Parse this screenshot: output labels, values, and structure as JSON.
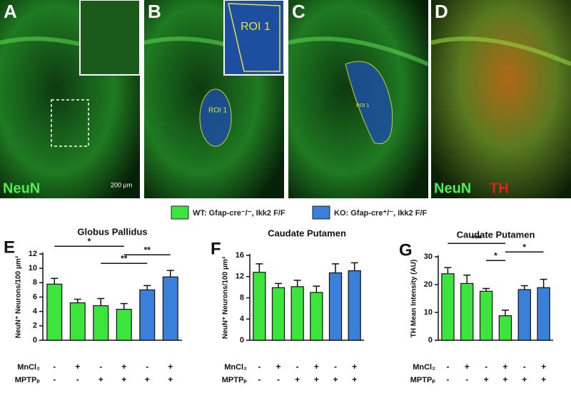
{
  "images": [
    {
      "letter": "A",
      "texts": [
        "NeuN",
        "200 μm"
      ]
    },
    {
      "letter": "B",
      "texts": [
        "ROI 1",
        "ROI 1"
      ]
    },
    {
      "letter": "C",
      "texts": [
        "ROI 1"
      ]
    },
    {
      "letter": "D",
      "texts": [
        "NeuN",
        "TH"
      ]
    }
  ],
  "legend": [
    {
      "name": "WT: Gfap-cre⁻/⁻, Ikk2 F/F",
      "color": "#3ee43e"
    },
    {
      "name": "KO: Gfap-cre⁺/⁻, Ikk2 F/F",
      "color": "#3a7fd8"
    }
  ],
  "chart_data": [
    {
      "type": "bar",
      "letter": "E",
      "title": "Globus Pallidus",
      "y_label": "NeuN⁺ Neurons/100 μm²",
      "values": [
        7.8,
        5.2,
        4.8,
        4.3,
        7.0,
        8.8
      ],
      "errors": [
        0.8,
        0.5,
        1.0,
        0.8,
        0.6,
        0.9
      ],
      "colors": [
        "#3ee43e",
        "#3ee43e",
        "#3ee43e",
        "#3ee43e",
        "#3a7fd8",
        "#3a7fd8"
      ],
      "ylim": [
        0,
        12
      ],
      "yticks": [
        0,
        2,
        4,
        6,
        8,
        10,
        12
      ],
      "treatments": [
        {
          "name": "MnCl₂",
          "signs": [
            "-",
            "+",
            "-",
            "+",
            "-",
            "+"
          ]
        },
        {
          "name": "MPTPₚ",
          "signs": [
            "-",
            "-",
            "+",
            "+",
            "+",
            "+"
          ]
        }
      ],
      "brackets": [
        {
          "from": 0,
          "to": 3,
          "label": "*"
        },
        {
          "from": 2,
          "to": 4,
          "label": "**"
        },
        {
          "from": 3,
          "to": 5,
          "label": "**"
        }
      ]
    },
    {
      "type": "bar",
      "letter": "F",
      "title": "Caudate Putamen",
      "y_label": "NeuN⁺ Neurons/100 μm²",
      "values": [
        12.8,
        9.9,
        10.1,
        9.0,
        12.7,
        13.1
      ],
      "errors": [
        1.6,
        0.8,
        1.2,
        1.2,
        1.7,
        1.5
      ],
      "colors": [
        "#3ee43e",
        "#3ee43e",
        "#3ee43e",
        "#3ee43e",
        "#3a7fd8",
        "#3a7fd8"
      ],
      "ylim": [
        0,
        16
      ],
      "yticks": [
        0,
        4,
        8,
        12,
        16
      ],
      "treatments": [
        {
          "name": "MnCl₂",
          "signs": [
            "-",
            "+",
            "-",
            "+",
            "-",
            "+"
          ]
        },
        {
          "name": "MPTPₚ",
          "signs": [
            "-",
            "-",
            "+",
            "+",
            "+",
            "+"
          ]
        }
      ],
      "brackets": []
    },
    {
      "type": "bar",
      "letter": "G",
      "title": "Caudate Putamen",
      "y_label": "TH Mean Intensity (AU)",
      "values": [
        23.9,
        20.4,
        17.6,
        8.8,
        18.2,
        18.9
      ],
      "errors": [
        2.2,
        3.0,
        1.0,
        2.0,
        1.4,
        3.0
      ],
      "colors": [
        "#3ee43e",
        "#3ee43e",
        "#3ee43e",
        "#3ee43e",
        "#3a7fd8",
        "#3a7fd8"
      ],
      "ylim": [
        0,
        30
      ],
      "yticks": [
        0,
        10,
        20,
        30
      ],
      "treatments": [
        {
          "name": "MnCl₂",
          "signs": [
            "-",
            "+",
            "-",
            "+",
            "-",
            "+"
          ]
        },
        {
          "name": "MPTPₚ",
          "signs": [
            "-",
            "-",
            "+",
            "+",
            "+",
            "+"
          ]
        }
      ],
      "brackets": [
        {
          "from": 0,
          "to": 3,
          "label": "***"
        },
        {
          "from": 2,
          "to": 3,
          "label": "*"
        },
        {
          "from": 3,
          "to": 5,
          "label": "*"
        }
      ]
    }
  ]
}
